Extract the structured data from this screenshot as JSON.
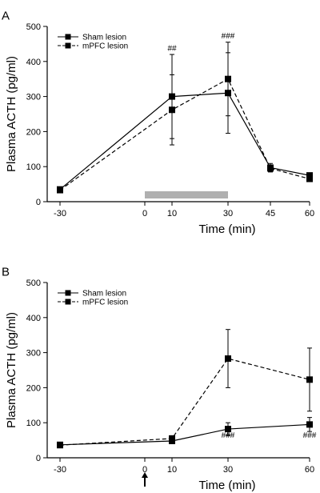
{
  "chart_data": [
    {
      "type": "line",
      "panel_label": "A",
      "xlabel": "Time (min)",
      "ylabel": "Plasma ACTH (pg/ml)",
      "xlim": [
        -30,
        60
      ],
      "ylim": [
        0,
        500
      ],
      "x_ticks": [
        -30,
        0,
        10,
        30,
        45,
        60
      ],
      "y_ticks": [
        0,
        100,
        200,
        300,
        400,
        500
      ],
      "legend_position": "top-left",
      "grid": false,
      "stimulus_bar": {
        "start": 0,
        "end": 30,
        "color": "#b0b0b0"
      },
      "series": [
        {
          "name": "Sham lesion",
          "line_style": "solid",
          "x": [
            -30,
            10,
            30,
            45,
            60
          ],
          "values": [
            35,
            300,
            310,
            97,
            75
          ],
          "error": [
            0,
            120,
            115,
            12,
            5
          ]
        },
        {
          "name": "mPFC lesion",
          "line_style": "dashed",
          "x": [
            -30,
            10,
            30,
            45,
            60
          ],
          "values": [
            33,
            262,
            350,
            95,
            65
          ],
          "error": [
            0,
            100,
            105,
            10,
            5
          ]
        }
      ],
      "annotations": [
        {
          "text": "##",
          "x": 10,
          "y": 430
        },
        {
          "text": "###",
          "x": 30,
          "y": 466
        }
      ]
    },
    {
      "type": "line",
      "panel_label": "B",
      "xlabel": "Time (min)",
      "ylabel": "Plasma ACTH (pg/ml)",
      "xlim": [
        -30,
        60
      ],
      "ylim": [
        0,
        500
      ],
      "x_ticks": [
        -30,
        0,
        10,
        30,
        60
      ],
      "y_ticks": [
        0,
        100,
        200,
        300,
        400,
        500
      ],
      "legend_position": "top-left",
      "grid": false,
      "stimulus_arrow_at": 0,
      "series": [
        {
          "name": "Sham lesion",
          "line_style": "solid",
          "x": [
            -30,
            10,
            30,
            60
          ],
          "values": [
            37,
            48,
            82,
            95
          ],
          "error": [
            0,
            8,
            18,
            20
          ]
        },
        {
          "name": "mPFC lesion",
          "line_style": "dashed",
          "x": [
            -30,
            10,
            30,
            60
          ],
          "values": [
            36,
            55,
            283,
            223
          ],
          "error": [
            0,
            8,
            83,
            90
          ]
        }
      ],
      "annotations": [
        {
          "text": "###",
          "x": 30,
          "y": 57
        },
        {
          "text": "###",
          "x": 60,
          "y": 57
        }
      ]
    }
  ],
  "colors": {
    "line": "#000000",
    "stimulus_bar": "#b0b0b0"
  }
}
